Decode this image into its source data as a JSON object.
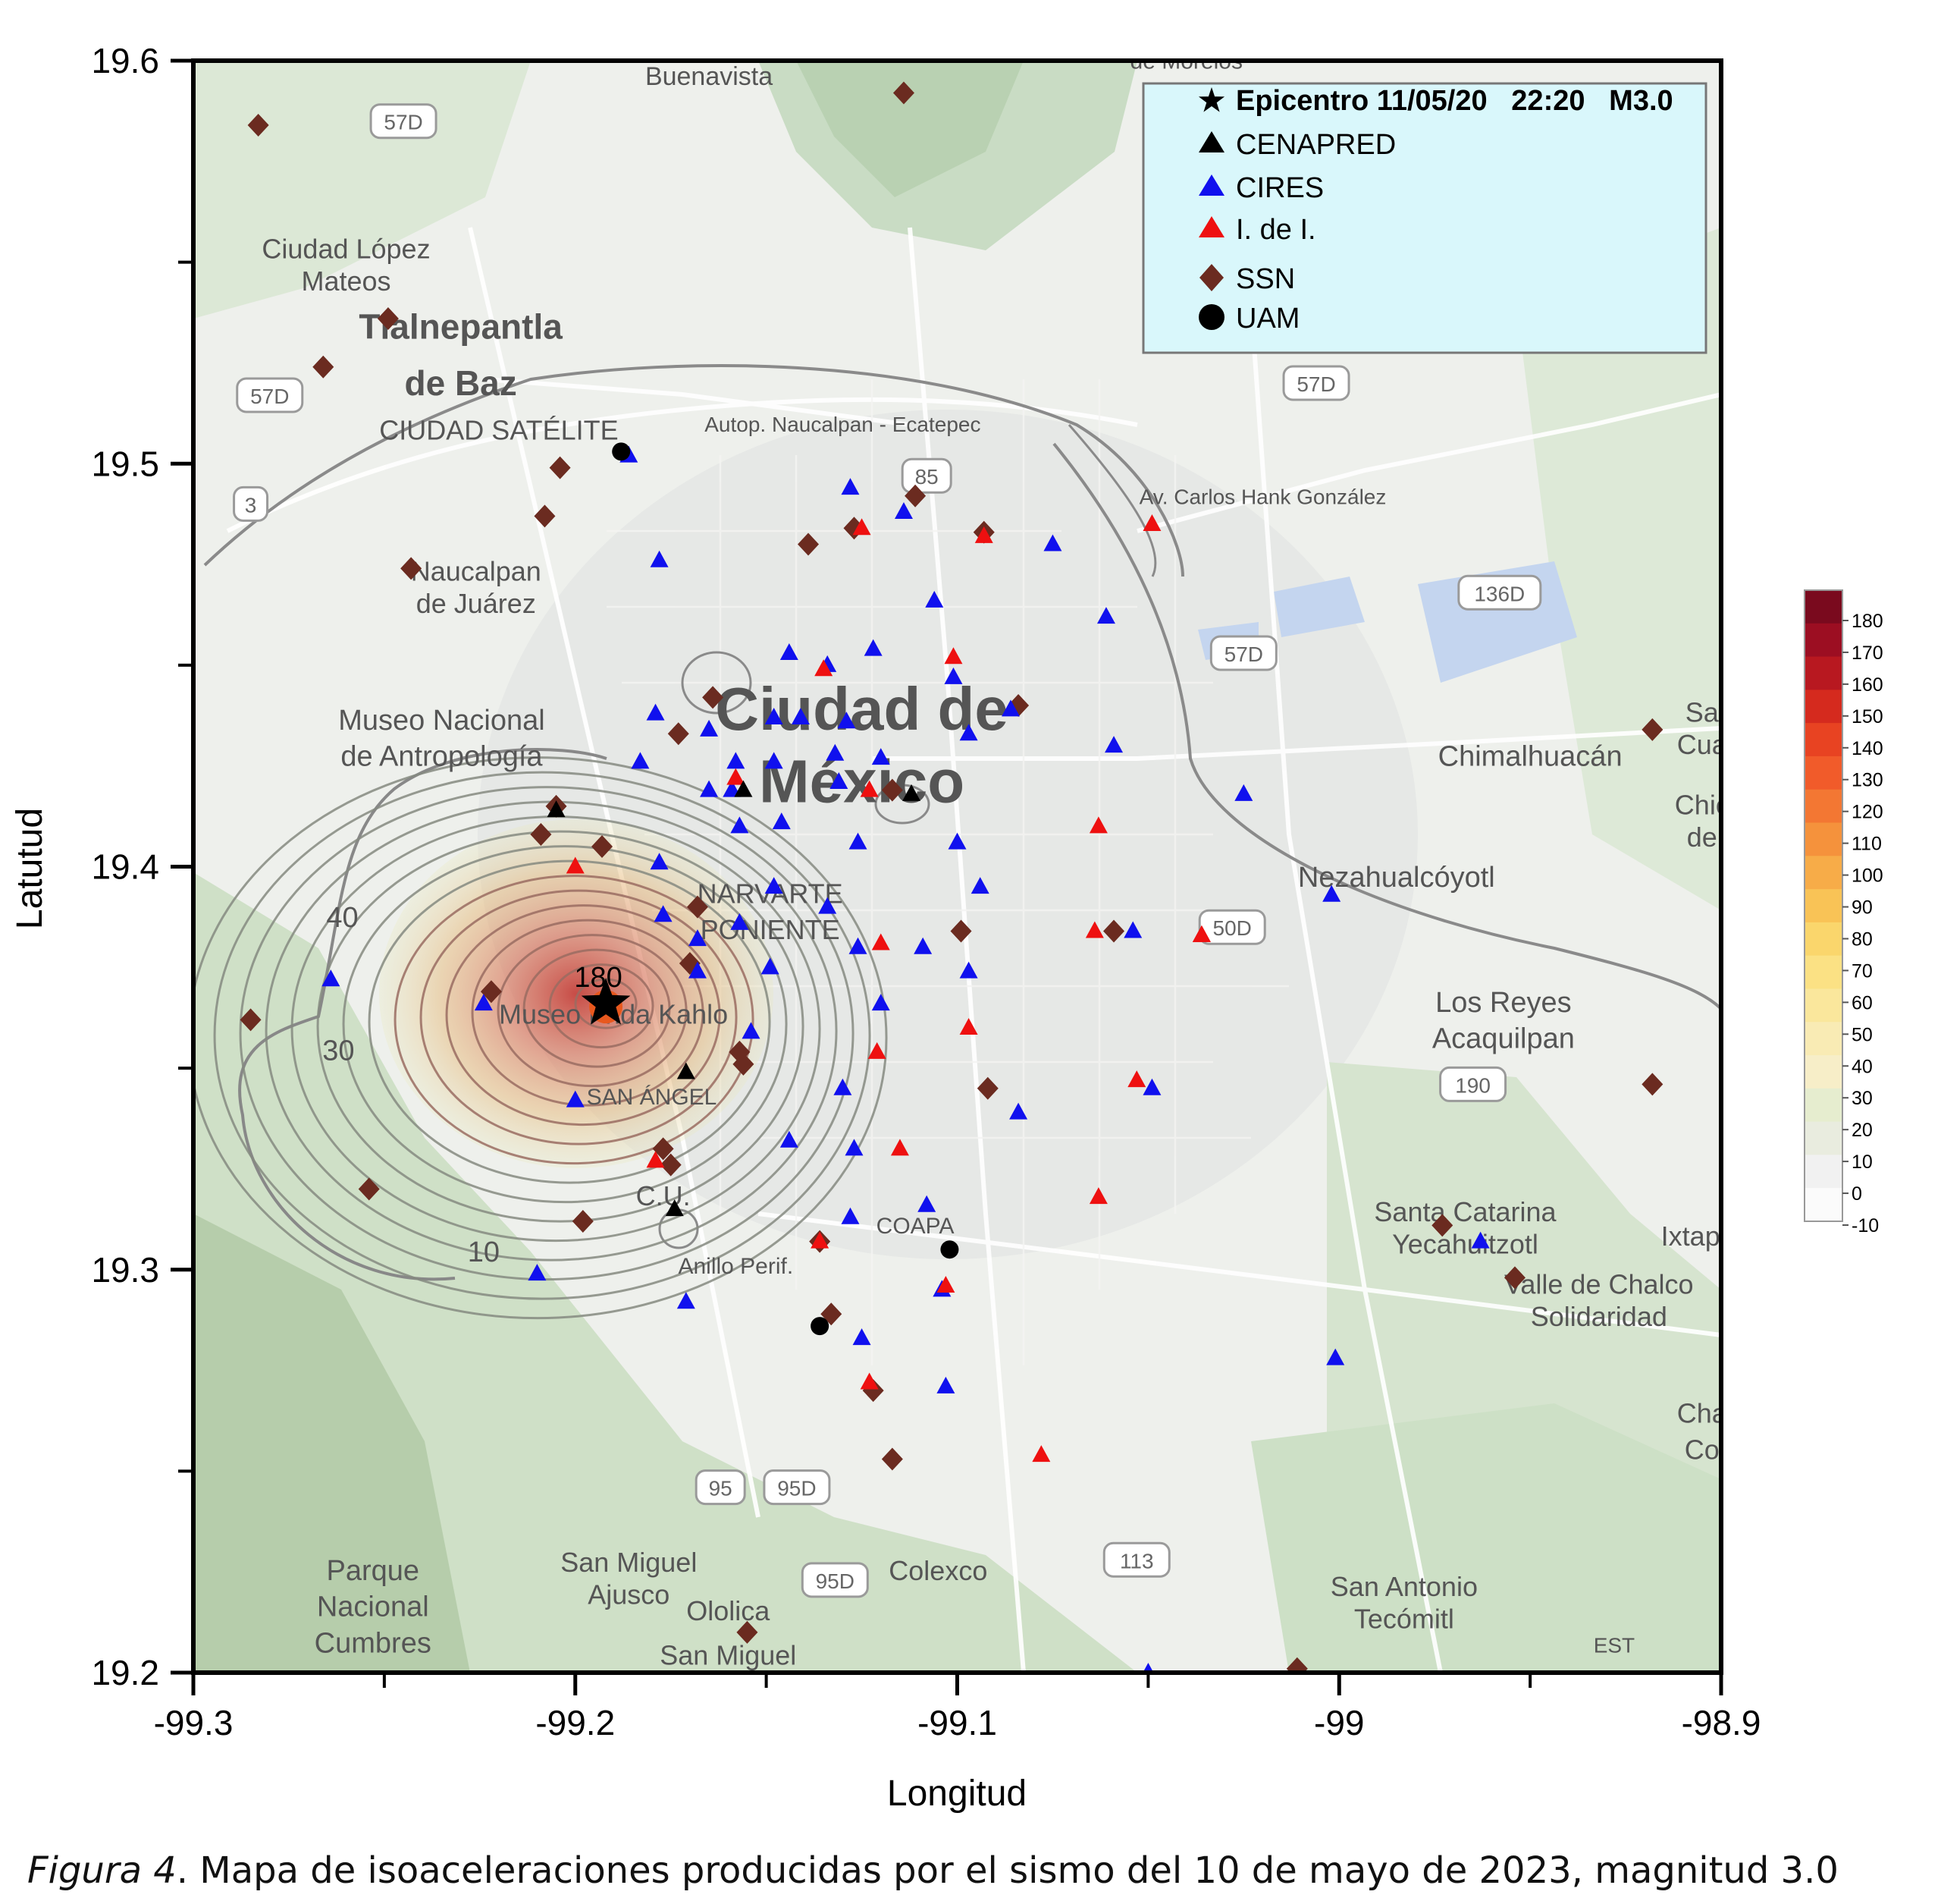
{
  "map": {
    "xlabel": "Longitud",
    "ylabel": "Latutud",
    "xlim": [
      -99.3,
      -98.9
    ],
    "ylim": [
      19.2,
      19.6
    ],
    "xticks": [
      -99.3,
      -99.2,
      -99.1,
      -99,
      -98.9
    ],
    "xtick_labels": [
      "-99.3",
      "-99.2",
      "-99.1",
      "-99",
      "-98.9"
    ],
    "yticks": [
      19.2,
      19.3,
      19.4,
      19.5,
      19.6
    ],
    "ytick_labels": [
      "19.2",
      "19.3",
      "19.4",
      "19.5",
      "19.6"
    ],
    "epicenter": {
      "lon": -99.192,
      "lat": 19.366,
      "label": "180"
    },
    "contour_labels": [
      {
        "text": "10",
        "lon": -99.224,
        "lat": 19.302
      },
      {
        "text": "30",
        "lon": -99.262,
        "lat": 19.352
      },
      {
        "text": "40",
        "lon": -99.261,
        "lat": 19.385
      }
    ],
    "place_labels": [
      {
        "text": "Buenavista",
        "lon": -99.165,
        "lat": 19.594,
        "size": 34
      },
      {
        "text": "Ciudad López",
        "lon": -99.26,
        "lat": 19.551,
        "size": 36
      },
      {
        "text": "Mateos",
        "lon": -99.26,
        "lat": 19.543,
        "size": 36
      },
      {
        "text": "Tlalnepantla",
        "lon": -99.23,
        "lat": 19.531,
        "size": 46
      },
      {
        "text": "de Baz",
        "lon": -99.23,
        "lat": 19.517,
        "size": 46
      },
      {
        "text": "CIUDAD SATÉLITE",
        "lon": -99.22,
        "lat": 19.506,
        "size": 36
      },
      {
        "text": "Naucalpan",
        "lon": -99.226,
        "lat": 19.471,
        "size": 36
      },
      {
        "text": "de Juárez",
        "lon": -99.226,
        "lat": 19.463,
        "size": 36
      },
      {
        "text": "Museo Nacional",
        "lon": -99.235,
        "lat": 19.434,
        "size": 38
      },
      {
        "text": "de Antropología",
        "lon": -99.235,
        "lat": 19.425,
        "size": 38
      },
      {
        "text": "Ciudad de",
        "lon": -99.125,
        "lat": 19.434,
        "size": 80
      },
      {
        "text": "México",
        "lon": -99.125,
        "lat": 19.416,
        "size": 80
      },
      {
        "text": "NARVARTE",
        "lon": -99.149,
        "lat": 19.391,
        "size": 36
      },
      {
        "text": "PONIENTE",
        "lon": -99.149,
        "lat": 19.382,
        "size": 36
      },
      {
        "text": "Museo Frida Kahlo",
        "lon": -99.19,
        "lat": 19.361,
        "size": 36
      },
      {
        "text": "SAN ÁNGEL",
        "lon": -99.18,
        "lat": 19.341,
        "size": 30
      },
      {
        "text": "C.U.",
        "lon": -99.177,
        "lat": 19.316,
        "size": 36
      },
      {
        "text": "COAPA",
        "lon": -99.111,
        "lat": 19.309,
        "size": 30
      },
      {
        "text": "Anillo Perif.",
        "lon": -99.158,
        "lat": 19.299,
        "size": 30
      },
      {
        "text": "Chimalhuacán",
        "lon": -98.95,
        "lat": 19.425,
        "size": 38
      },
      {
        "text": "Nezahualcóyotl",
        "lon": -98.985,
        "lat": 19.395,
        "size": 38
      },
      {
        "text": "Los Reyes",
        "lon": -98.957,
        "lat": 19.364,
        "size": 38
      },
      {
        "text": "Acaquilpan",
        "lon": -98.957,
        "lat": 19.355,
        "size": 38
      },
      {
        "text": "Santa Catarina",
        "lon": -98.967,
        "lat": 19.312,
        "size": 36
      },
      {
        "text": "Yecahuitzotl",
        "lon": -98.967,
        "lat": 19.304,
        "size": 36
      },
      {
        "text": "Valle de Chalco",
        "lon": -98.932,
        "lat": 19.294,
        "size": 36
      },
      {
        "text": "Solidaridad",
        "lon": -98.932,
        "lat": 19.286,
        "size": 36
      },
      {
        "text": "San Miguel",
        "lon": -99.186,
        "lat": 19.225,
        "size": 36
      },
      {
        "text": "Ajusco",
        "lon": -99.186,
        "lat": 19.217,
        "size": 36
      },
      {
        "text": "Colexco",
        "lon": -99.105,
        "lat": 19.223,
        "size": 36
      },
      {
        "text": "Ololica",
        "lon": -99.16,
        "lat": 19.213,
        "size": 36
      },
      {
        "text": "Parque",
        "lon": -99.253,
        "lat": 19.223,
        "size": 38
      },
      {
        "text": "Nacional",
        "lon": -99.253,
        "lat": 19.214,
        "size": 38
      },
      {
        "text": "Cumbres",
        "lon": -99.253,
        "lat": 19.205,
        "size": 38
      },
      {
        "text": "San Miguel",
        "lon": -99.16,
        "lat": 19.202,
        "size": 36
      },
      {
        "text": "San Antonio",
        "lon": -98.983,
        "lat": 19.219,
        "size": 36
      },
      {
        "text": "Tecómitl",
        "lon": -98.983,
        "lat": 19.211,
        "size": 36
      },
      {
        "text": "Autop. Naucalpan - Ecatepec",
        "lon": -99.13,
        "lat": 19.508,
        "size": 28
      },
      {
        "text": "Av. Carlos Hank González",
        "lon": -99.02,
        "lat": 19.49,
        "size": 28
      },
      {
        "text": "Sa",
        "lon": -98.905,
        "lat": 19.436,
        "size": 36
      },
      {
        "text": "Cua",
        "lon": -98.905,
        "lat": 19.428,
        "size": 36
      },
      {
        "text": "Chic",
        "lon": -98.905,
        "lat": 19.413,
        "size": 36
      },
      {
        "text": "de",
        "lon": -98.905,
        "lat": 19.405,
        "size": 36
      },
      {
        "text": "Ixtap",
        "lon": -98.908,
        "lat": 19.306,
        "size": 36
      },
      {
        "text": "Cha",
        "lon": -98.905,
        "lat": 19.262,
        "size": 36
      },
      {
        "text": "Co",
        "lon": -98.905,
        "lat": 19.253,
        "size": 36
      },
      {
        "text": "de Morelos",
        "lon": -99.04,
        "lat": 19.598,
        "size": 30
      },
      {
        "text": "EST",
        "lon": -98.928,
        "lat": 19.205,
        "size": 28
      }
    ],
    "road_shields": [
      {
        "text": "57D",
        "lon": -99.245,
        "lat": 19.585
      },
      {
        "text": "57D",
        "lon": -99.28,
        "lat": 19.517
      },
      {
        "text": "3",
        "lon": -99.285,
        "lat": 19.49
      },
      {
        "text": "85",
        "lon": -99.108,
        "lat": 19.497
      },
      {
        "text": "57D",
        "lon": -99.006,
        "lat": 19.52
      },
      {
        "text": "136D",
        "lon": -98.958,
        "lat": 19.468
      },
      {
        "text": "57D",
        "lon": -99.025,
        "lat": 19.453
      },
      {
        "text": "50D",
        "lon": -99.028,
        "lat": 19.385
      },
      {
        "text": "190",
        "lon": -98.965,
        "lat": 19.346
      },
      {
        "text": "95",
        "lon": -99.162,
        "lat": 19.246
      },
      {
        "text": "95D",
        "lon": -99.142,
        "lat": 19.246
      },
      {
        "text": "95D",
        "lon": -99.132,
        "lat": 19.223
      },
      {
        "text": "113",
        "lon": -99.053,
        "lat": 19.228
      }
    ]
  },
  "legend": {
    "items": [
      {
        "symbol": "star",
        "color": "#000000",
        "label": "Epicentro 11/05/20   22:20   M3.0",
        "bold": true
      },
      {
        "symbol": "triangle",
        "color": "#000000",
        "label": "CENAPRED",
        "bold": false
      },
      {
        "symbol": "triangle",
        "color": "#1010ee",
        "label": "CIRES",
        "bold": false
      },
      {
        "symbol": "triangle",
        "color": "#ee1010",
        "label": "I. de I.",
        "bold": false
      },
      {
        "symbol": "diamond",
        "color": "#6b2b20",
        "label": "SSN",
        "bold": false
      },
      {
        "symbol": "circle",
        "color": "#000000",
        "label": "UAM",
        "bold": false
      }
    ]
  },
  "colorbar": {
    "labels": [
      "180",
      "170",
      "160",
      "150",
      "140",
      "130",
      "120",
      "110",
      "100",
      "90",
      "80",
      "70",
      "60",
      "50",
      "40",
      "30",
      "20",
      "10",
      "0",
      "-10"
    ],
    "colors": [
      "#7a0a1e",
      "#9c0e22",
      "#b81820",
      "#d52a1e",
      "#e84322",
      "#f15b2a",
      "#f37733",
      "#f5923c",
      "#f7ac48",
      "#f9c356",
      "#fad66c",
      "#fbe184",
      "#fae79c",
      "#f9ebb4",
      "#f7eec8",
      "#e6edcf",
      "#e9ecdf",
      "#f1f1f1",
      "#fbfbfb"
    ]
  },
  "stations": {
    "cenapred": [
      [
        -99.205,
        19.414
      ],
      [
        -99.156,
        19.419
      ],
      [
        -99.112,
        19.418
      ],
      [
        -99.171,
        19.349
      ],
      [
        -99.174,
        19.315
      ]
    ],
    "cires": [
      [
        -99.186,
        19.502
      ],
      [
        -99.178,
        19.476
      ],
      [
        -99.179,
        19.438
      ],
      [
        -99.183,
        19.426
      ],
      [
        -99.178,
        19.401
      ],
      [
        -99.177,
        19.388
      ],
      [
        -99.165,
        19.434
      ],
      [
        -99.165,
        19.419
      ],
      [
        -99.158,
        19.426
      ],
      [
        -99.159,
        19.419
      ],
      [
        -99.157,
        19.41
      ],
      [
        -99.157,
        19.386
      ],
      [
        -99.168,
        19.382
      ],
      [
        -99.168,
        19.374
      ],
      [
        -99.148,
        19.437
      ],
      [
        -99.148,
        19.426
      ],
      [
        -99.146,
        19.411
      ],
      [
        -99.148,
        19.395
      ],
      [
        -99.149,
        19.375
      ],
      [
        -99.154,
        19.359
      ],
      [
        -99.144,
        19.453
      ],
      [
        -99.141,
        19.437
      ],
      [
        -99.134,
        19.45
      ],
      [
        -99.132,
        19.428
      ],
      [
        -99.131,
        19.421
      ],
      [
        -99.129,
        19.436
      ],
      [
        -99.128,
        19.494
      ],
      [
        -99.122,
        19.454
      ],
      [
        -99.12,
        19.427
      ],
      [
        -99.126,
        19.406
      ],
      [
        -99.134,
        19.39
      ],
      [
        -99.126,
        19.38
      ],
      [
        -99.12,
        19.366
      ],
      [
        -99.13,
        19.345
      ],
      [
        -99.127,
        19.33
      ],
      [
        -99.128,
        19.313
      ],
      [
        -99.125,
        19.283
      ],
      [
        -99.144,
        19.332
      ],
      [
        -99.114,
        19.488
      ],
      [
        -99.106,
        19.466
      ],
      [
        -99.101,
        19.447
      ],
      [
        -99.097,
        19.433
      ],
      [
        -99.086,
        19.439
      ],
      [
        -99.1,
        19.406
      ],
      [
        -99.094,
        19.395
      ],
      [
        -99.109,
        19.38
      ],
      [
        -99.097,
        19.374
      ],
      [
        -99.084,
        19.339
      ],
      [
        -99.108,
        19.316
      ],
      [
        -99.104,
        19.295
      ],
      [
        -99.103,
        19.271
      ],
      [
        -99.075,
        19.48
      ],
      [
        -99.061,
        19.462
      ],
      [
        -99.059,
        19.43
      ],
      [
        -99.054,
        19.384
      ],
      [
        -99.049,
        19.345
      ],
      [
        -99.025,
        19.418
      ],
      [
        -99.002,
        19.393
      ],
      [
        -99.001,
        19.278
      ],
      [
        -99.05,
        19.2
      ],
      [
        -99.2,
        19.342
      ],
      [
        -99.224,
        19.366
      ],
      [
        -99.264,
        19.372
      ],
      [
        -99.21,
        19.299
      ],
      [
        -99.171,
        19.292
      ],
      [
        -98.963,
        19.307
      ]
    ],
    "idei": [
      [
        -99.2,
        19.4
      ],
      [
        -99.158,
        19.422
      ],
      [
        -99.135,
        19.449
      ],
      [
        -99.125,
        19.484
      ],
      [
        -99.093,
        19.482
      ],
      [
        -99.101,
        19.452
      ],
      [
        -99.123,
        19.419
      ],
      [
        -99.12,
        19.381
      ],
      [
        -99.121,
        19.354
      ],
      [
        -99.115,
        19.33
      ],
      [
        -99.097,
        19.36
      ],
      [
        -99.063,
        19.41
      ],
      [
        -99.064,
        19.384
      ],
      [
        -99.063,
        19.318
      ],
      [
        -99.049,
        19.485
      ],
      [
        -99.036,
        19.383
      ],
      [
        -99.036,
        19.383
      ],
      [
        -99.053,
        19.347
      ],
      [
        -99.078,
        19.254
      ],
      [
        -99.136,
        19.307
      ],
      [
        -99.179,
        19.327
      ],
      [
        -99.103,
        19.296
      ],
      [
        -99.123,
        19.272
      ]
    ],
    "ssn": [
      [
        -99.283,
        19.584
      ],
      [
        -99.114,
        19.592
      ],
      [
        -99.249,
        19.536
      ],
      [
        -99.266,
        19.524
      ],
      [
        -99.204,
        19.499
      ],
      [
        -99.208,
        19.487
      ],
      [
        -99.243,
        19.474
      ],
      [
        -99.111,
        19.492
      ],
      [
        -99.139,
        19.48
      ],
      [
        -99.127,
        19.484
      ],
      [
        -99.093,
        19.483
      ],
      [
        -99.164,
        19.442
      ],
      [
        -99.173,
        19.433
      ],
      [
        -99.084,
        19.44
      ],
      [
        -99.205,
        19.415
      ],
      [
        -99.117,
        19.419
      ],
      [
        -99.209,
        19.408
      ],
      [
        -99.193,
        19.405
      ],
      [
        -99.168,
        19.39
      ],
      [
        -99.099,
        19.384
      ],
      [
        -99.059,
        19.384
      ],
      [
        -99.17,
        19.376
      ],
      [
        -99.222,
        19.369
      ],
      [
        -99.285,
        19.362
      ],
      [
        -99.156,
        19.351
      ],
      [
        -99.157,
        19.354
      ],
      [
        -99.092,
        19.345
      ],
      [
        -99.177,
        19.33
      ],
      [
        -99.175,
        19.326
      ],
      [
        -99.254,
        19.32
      ],
      [
        -99.198,
        19.312
      ],
      [
        -99.136,
        19.307
      ],
      [
        -99.133,
        19.289
      ],
      [
        -99.122,
        19.27
      ],
      [
        -99.117,
        19.253
      ],
      [
        -99.155,
        19.21
      ],
      [
        -99.011,
        19.201
      ],
      [
        -98.918,
        19.434
      ],
      [
        -98.918,
        19.346
      ],
      [
        -98.973,
        19.311
      ],
      [
        -98.954,
        19.298
      ]
    ],
    "uam": [
      [
        -99.188,
        19.503
      ],
      [
        -99.102,
        19.305
      ],
      [
        -99.136,
        19.286
      ]
    ]
  },
  "caption": {
    "label": "Figura 4",
    "text": ". Mapa de isoaceleraciones producidas por el sismo del 10 de mayo de 2023, magnitud 3.0"
  }
}
